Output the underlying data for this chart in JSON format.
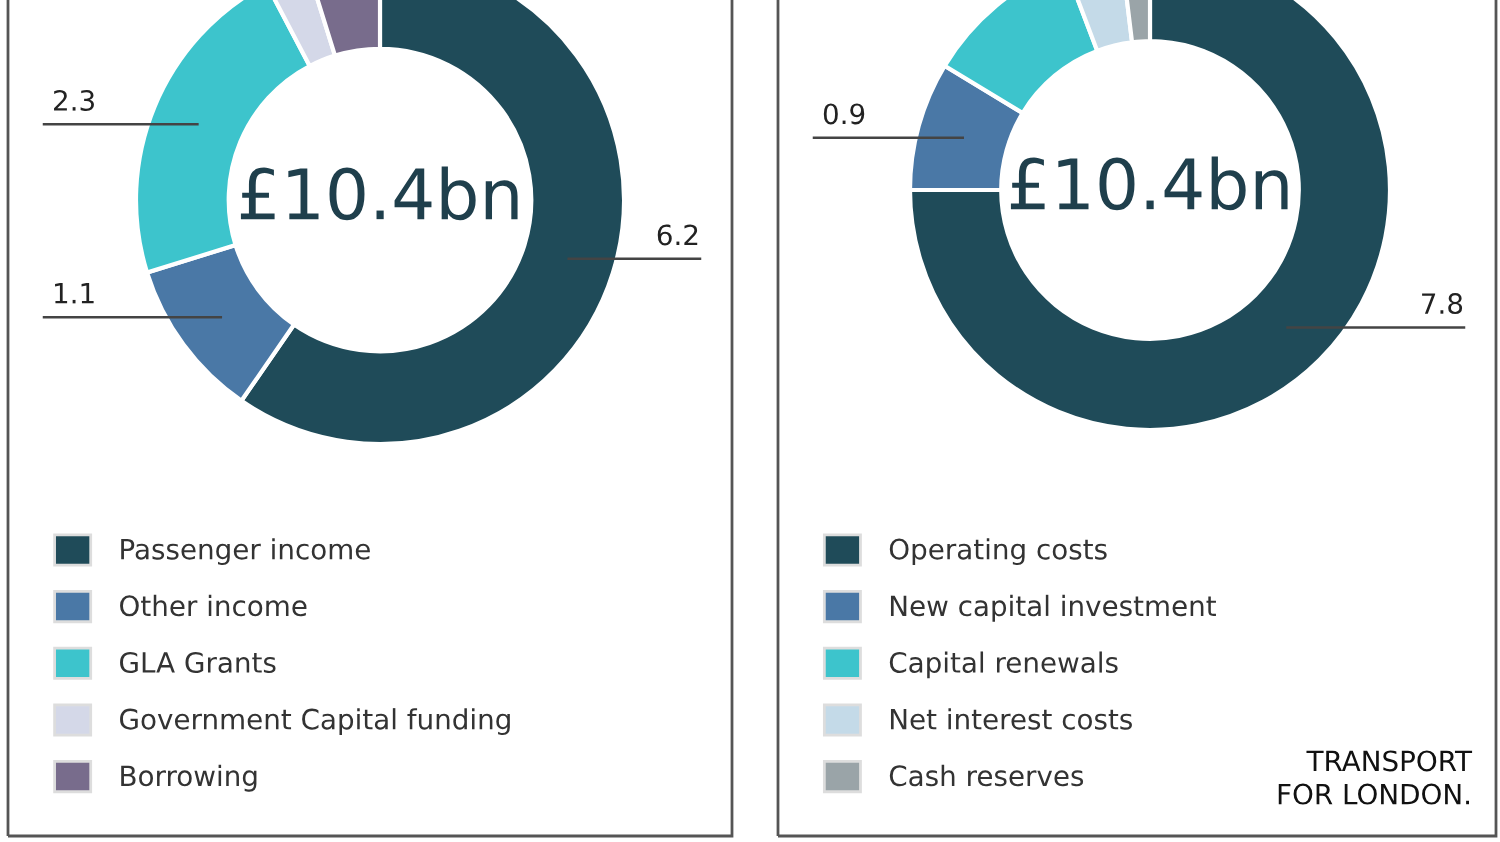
{
  "chart_data": [
    {
      "type": "donut",
      "categories": [
        "Passenger income",
        "Other income",
        "GLA Grants",
        "Government Capital funding",
        "Borrowing"
      ],
      "values": [
        6.2,
        1.1,
        2.3,
        0.3,
        0.5
      ],
      "colors": [
        "#1f4b59",
        "#4a78a6",
        "#3dc4cc",
        "#d4d8e8",
        "#786c8c"
      ],
      "value_labels": [
        "6.2",
        "1.1",
        "2.3",
        null,
        null
      ],
      "annotations": [
        "£10.4bn"
      ],
      "legend": "bottom left"
    },
    {
      "type": "donut",
      "categories": [
        "Operating costs",
        "New capital investment",
        "Capital renewals",
        "Net interest costs",
        "Cash reserves"
      ],
      "values": [
        7.8,
        0.9,
        1.1,
        0.4,
        0.2
      ],
      "colors": [
        "#1f4b59",
        "#4a78a6",
        "#3dc4cc",
        "#c4dae8",
        "#9aa4a8"
      ],
      "value_labels": [
        "7.8",
        "0.9",
        null,
        null,
        null
      ],
      "annotations": [
        "£10.4bn",
        "TRANSPORT\nFOR LONDON."
      ],
      "legend": "bottom left"
    }
  ]
}
